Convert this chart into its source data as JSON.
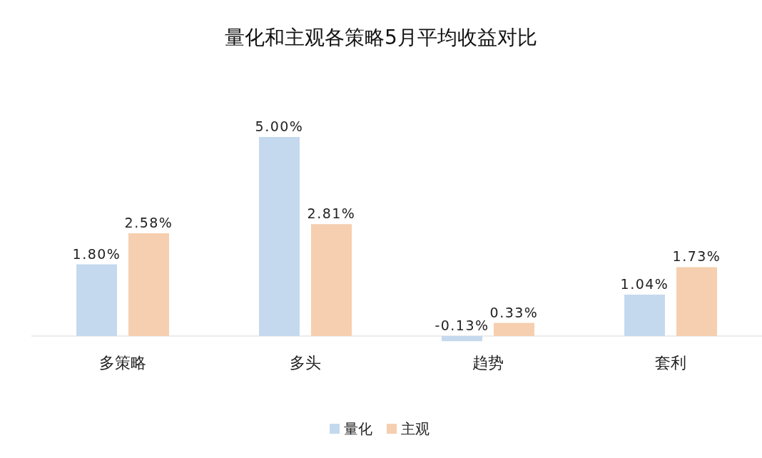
{
  "chart_data": {
    "type": "bar",
    "title": "量化和主观各策略5月平均收益对比",
    "categories": [
      "多策略",
      "多头",
      "趋势",
      "套利"
    ],
    "legend": "bottom",
    "series": [
      {
        "name": "量化",
        "color": "#c5d9ee",
        "values": [
          1.8,
          5.0,
          -0.13,
          1.04
        ],
        "value_labels": [
          "1.80%",
          "5.00%",
          "-0.13%",
          "1.04%"
        ]
      },
      {
        "name": "主观",
        "color": "#f5cfb0",
        "values": [
          2.58,
          2.81,
          0.33,
          1.73
        ],
        "value_labels": [
          "2.58%",
          "2.81%",
          "0.33%",
          "1.73%"
        ]
      }
    ]
  }
}
